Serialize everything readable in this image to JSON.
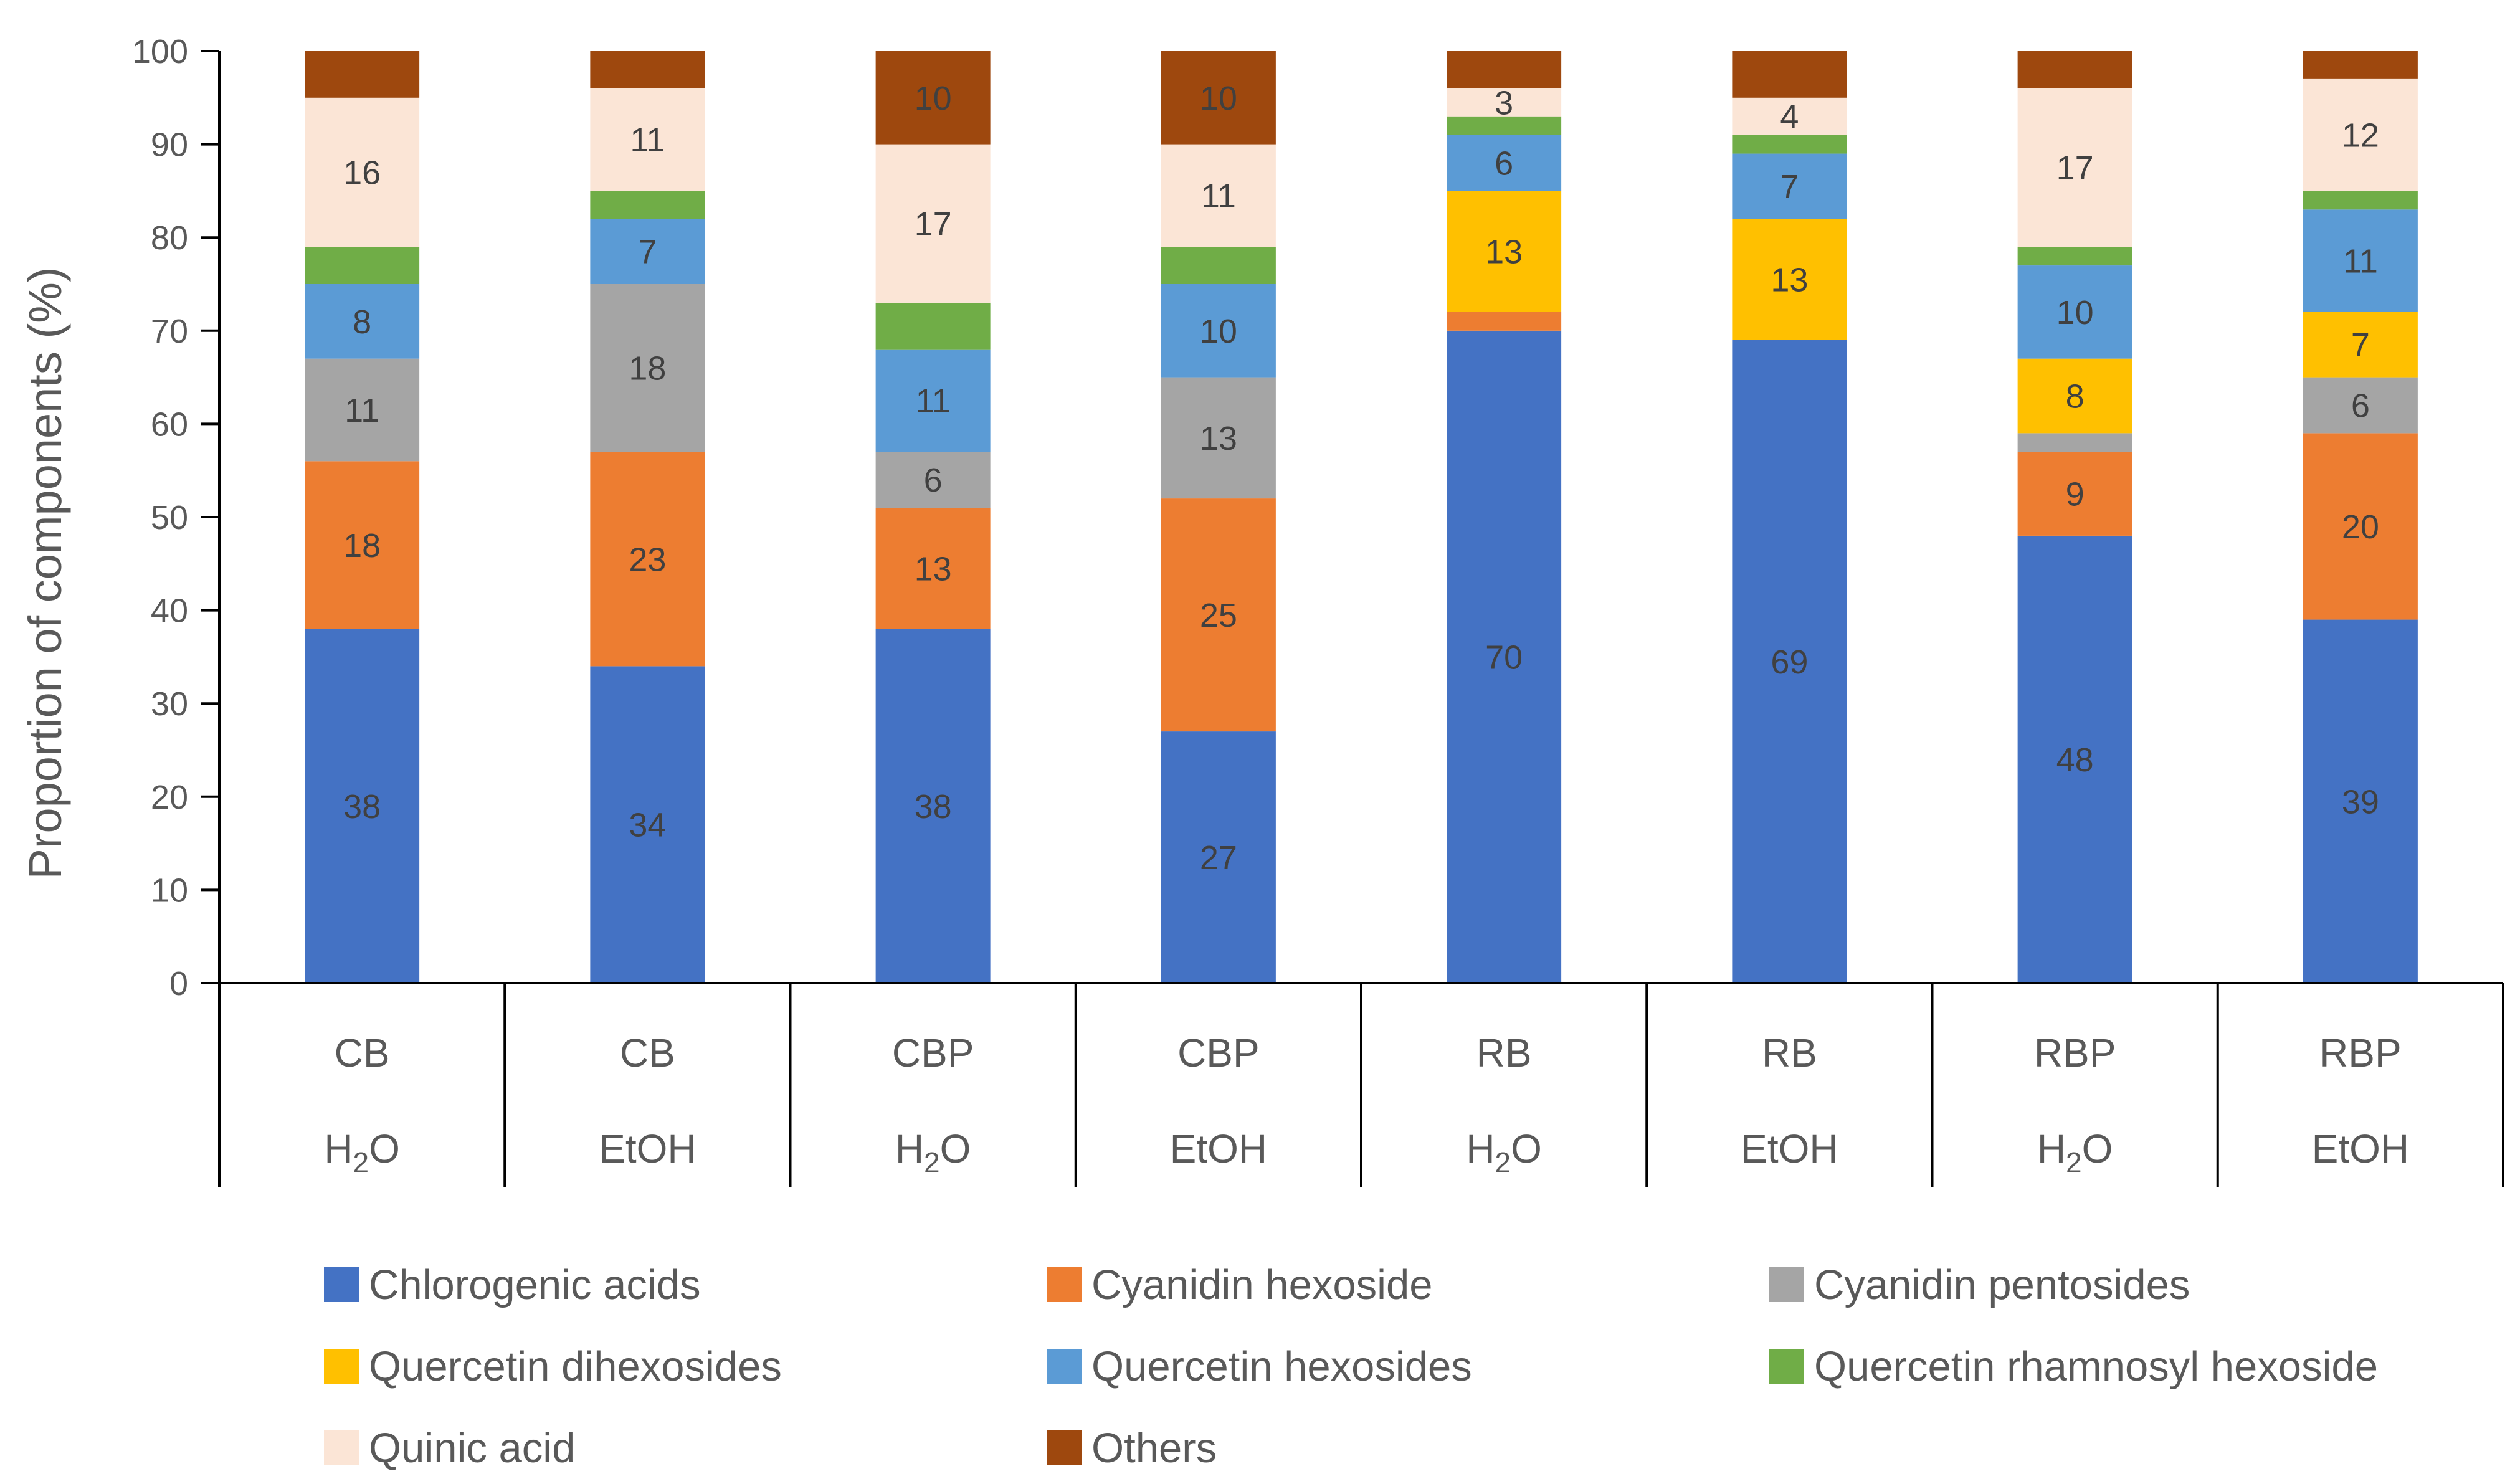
{
  "chart_data": {
    "type": "bar",
    "stacked": true,
    "title": "",
    "xlabel": "",
    "ylabel": "Proportion of components (%)",
    "ylim": [
      0,
      100
    ],
    "yticks": [
      "0",
      "10",
      "20",
      "30",
      "40",
      "50",
      "60",
      "70",
      "80",
      "90",
      "100"
    ],
    "grid": false,
    "legend_position": "bottom",
    "groups": [
      {
        "top": "CB",
        "bottom": "H2O",
        "bottom_base": "H",
        "bottom_sub": "2",
        "bottom_tail": "O"
      },
      {
        "top": "CB",
        "bottom": "EtOH",
        "bottom_base": "EtOH",
        "bottom_sub": "",
        "bottom_tail": ""
      },
      {
        "top": "CBP",
        "bottom": "H2O",
        "bottom_base": "H",
        "bottom_sub": "2",
        "bottom_tail": "O"
      },
      {
        "top": "CBP",
        "bottom": "EtOH",
        "bottom_base": "EtOH",
        "bottom_sub": "",
        "bottom_tail": ""
      },
      {
        "top": "RB",
        "bottom": "H2O",
        "bottom_base": "H",
        "bottom_sub": "2",
        "bottom_tail": "O"
      },
      {
        "top": "RB",
        "bottom": "EtOH",
        "bottom_base": "EtOH",
        "bottom_sub": "",
        "bottom_tail": ""
      },
      {
        "top": "RBP",
        "bottom": "H2O",
        "bottom_base": "H",
        "bottom_sub": "2",
        "bottom_tail": "O"
      },
      {
        "top": "RBP",
        "bottom": "EtOH",
        "bottom_base": "EtOH",
        "bottom_sub": "",
        "bottom_tail": ""
      }
    ],
    "series": [
      {
        "name": "Chlorogenic acids",
        "color": "#4472C4",
        "values": [
          38,
          34,
          38,
          27,
          70,
          69,
          48,
          39
        ],
        "labels": [
          "38",
          "34",
          "38",
          "27",
          "70",
          "69",
          "48",
          "39"
        ]
      },
      {
        "name": "Cyanidin hexoside",
        "color": "#ED7D31",
        "values": [
          18,
          23,
          13,
          25,
          2,
          0,
          9,
          20
        ],
        "labels": [
          "18",
          "23",
          "13",
          "25",
          "",
          "",
          "9",
          "20"
        ]
      },
      {
        "name": "Cyanidin pentosides",
        "color": "#A5A5A5",
        "values": [
          11,
          18,
          6,
          13,
          0,
          0,
          2,
          6
        ],
        "labels": [
          "11",
          "18",
          "6",
          "13",
          "",
          "",
          "",
          "6"
        ]
      },
      {
        "name": "Quercetin dihexosides",
        "color": "#FFC000",
        "values": [
          0,
          0,
          0,
          0,
          13,
          13,
          8,
          7
        ],
        "labels": [
          "",
          "",
          "",
          "",
          "13",
          "13",
          "8",
          "7"
        ]
      },
      {
        "name": "Quercetin hexosides",
        "color": "#5B9BD5",
        "values": [
          8,
          7,
          11,
          10,
          6,
          7,
          10,
          11
        ],
        "labels": [
          "8",
          "7",
          "11",
          "10",
          "6",
          "7",
          "10",
          "11"
        ]
      },
      {
        "name": "Quercetin rhamnosyl hexoside",
        "color": "#70AD47",
        "values": [
          4,
          3,
          5,
          4,
          2,
          2,
          2,
          2
        ],
        "labels": [
          "",
          "",
          "",
          "",
          "",
          "",
          "",
          ""
        ]
      },
      {
        "name": "Quinic acid",
        "color": "#FBE5D6",
        "values": [
          16,
          11,
          17,
          11,
          3,
          4,
          17,
          12
        ],
        "labels": [
          "16",
          "11",
          "17",
          "11",
          "3",
          "4",
          "17",
          "12"
        ]
      },
      {
        "name": "Others",
        "color": "#9E480E",
        "values": [
          5,
          4,
          10,
          10,
          4,
          5,
          4,
          3
        ],
        "labels": [
          "",
          "",
          "10",
          "10",
          "",
          "",
          "",
          ""
        ]
      }
    ]
  }
}
